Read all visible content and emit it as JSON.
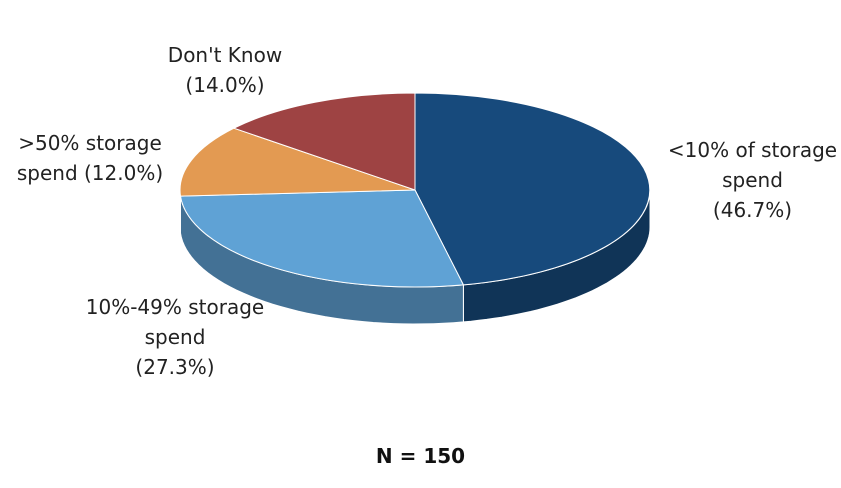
{
  "chart_data": {
    "type": "pie",
    "categories": [
      "<10% of storage spend",
      "10%-49% storage spend",
      ">50% storage spend",
      "Don't Know"
    ],
    "values": [
      46.7,
      27.3,
      12.0,
      14.0
    ],
    "value_labels": [
      "(46.7%)",
      "(27.3%)",
      "(12.0%)",
      "(14.0%)"
    ],
    "colors": [
      "#174a7c",
      "#5fa2d5",
      "#e39a52",
      "#9e4343"
    ],
    "annotation": "N = 150"
  }
}
